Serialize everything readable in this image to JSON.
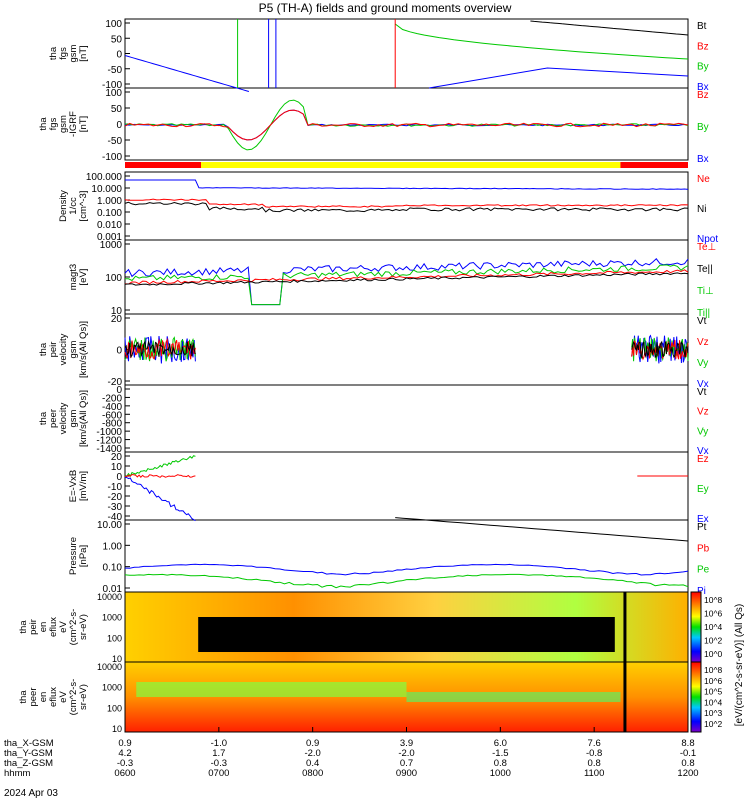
{
  "chart_data": {
    "type": "line",
    "title": "P5 (TH-A) fields and ground moments overview",
    "date_label": "2024 Apr 03",
    "time_axis": {
      "range": [
        "06:00",
        "12:00"
      ],
      "row_labels": [
        "tha_X-GSM",
        "tha_Y-GSM",
        "tha_Z-GSM",
        "hhmm"
      ],
      "columns": [
        [
          "0.9",
          "4.2",
          "-0.3",
          "0600"
        ],
        [
          "-1.0",
          "1.7",
          "-0.3",
          "0700"
        ],
        [
          "0.9",
          "-2.0",
          "0.4",
          "0800"
        ],
        [
          "3.9",
          "-2.0",
          "0.7",
          "0900"
        ],
        [
          "6.0",
          "-1.5",
          "0.8",
          "1000"
        ],
        [
          "7.6",
          "-0.8",
          "0.8",
          "1100"
        ],
        [
          "8.8",
          "-0.1",
          "0.8",
          "1200"
        ]
      ]
    },
    "panels": [
      {
        "ylabel": [
          "tha",
          "fgs",
          "gsm",
          "[nT]"
        ],
        "ylim": [
          -100,
          100
        ],
        "yticks": [
          "100",
          "50",
          "0",
          "-50",
          "-100"
        ],
        "legend": [
          {
            "name": "Bt",
            "color": "#000000"
          },
          {
            "name": "Bz",
            "color": "#ff0000"
          },
          {
            "name": "By",
            "color": "#00c800"
          },
          {
            "name": "Bx",
            "color": "#0000ff"
          }
        ]
      },
      {
        "ylabel": [
          "tha",
          "fgs",
          "gsm",
          "-IGRF",
          "[nT]"
        ],
        "ylim": [
          -120,
          120
        ],
        "yticks": [
          "100",
          "50",
          "0",
          "-50",
          "-100"
        ],
        "legend": [
          {
            "name": "Bz",
            "color": "#ff0000"
          },
          {
            "name": "By",
            "color": "#00c800"
          },
          {
            "name": "Bx",
            "color": "#0000ff"
          }
        ]
      },
      {
        "ylabel": [
          "Density",
          "1/cc",
          "[cm^-3]"
        ],
        "scale": "log",
        "yticks": [
          "100.000",
          "10.000",
          "1.000",
          "0.100",
          "0.010",
          "0.001"
        ],
        "legend": [
          {
            "name": "Ne",
            "color": "#ff0000"
          },
          {
            "name": "Ni",
            "color": "#000000"
          },
          {
            "name": "Npot",
            "color": "#0000ff"
          }
        ]
      },
      {
        "ylabel": [
          "magt3",
          "[eV]"
        ],
        "scale": "log",
        "yticks": [
          "1000",
          "100",
          "10"
        ],
        "legend": [
          {
            "name": "Te⊥",
            "color": "#ff0000"
          },
          {
            "name": "Te||",
            "color": "#000000"
          },
          {
            "name": "Ti⊥",
            "color": "#00c800"
          },
          {
            "name": "Ti||",
            "color": "#00c800"
          }
        ]
      },
      {
        "ylabel": [
          "tha",
          "peir",
          "velocity",
          "gsm",
          "[km/s(All Qs)]"
        ],
        "ylim": [
          -30,
          30
        ],
        "yticks": [
          "20",
          "0",
          "-20"
        ],
        "legend": [
          {
            "name": "Vt",
            "color": "#000000"
          },
          {
            "name": "Vz",
            "color": "#ff0000"
          },
          {
            "name": "Vy",
            "color": "#00c800"
          },
          {
            "name": "Vx",
            "color": "#0000ff"
          }
        ]
      },
      {
        "ylabel": [
          "tha",
          "peer",
          "velocity",
          "gsm",
          "[km/s(All Qs)]"
        ],
        "ylim": [
          -1400,
          0
        ],
        "yticks": [
          "0",
          "-200",
          "-400",
          "-600",
          "-800",
          "-1000",
          "-1200",
          "-1400"
        ],
        "legend": [
          {
            "name": "Vt",
            "color": "#000000"
          },
          {
            "name": "Vz",
            "color": "#ff0000"
          },
          {
            "name": "Vy",
            "color": "#00c800"
          },
          {
            "name": "Vx",
            "color": "#0000ff"
          }
        ]
      },
      {
        "ylabel": [
          "E=-VxB",
          "[mV/m]"
        ],
        "ylim": [
          -40,
          20
        ],
        "yticks": [
          "20",
          "10",
          "0",
          "-10",
          "-20",
          "-30",
          "-40"
        ],
        "legend": [
          {
            "name": "Ez",
            "color": "#ff0000"
          },
          {
            "name": "Ey",
            "color": "#00c800"
          },
          {
            "name": "Ex",
            "color": "#0000ff"
          }
        ]
      },
      {
        "ylabel": [
          "Pressure",
          "[nPa]"
        ],
        "scale": "log",
        "yticks": [
          "10.00",
          "1.00",
          "0.10",
          "0.01"
        ],
        "legend": [
          {
            "name": "Pt",
            "color": "#000000"
          },
          {
            "name": "Pb",
            "color": "#ff0000"
          },
          {
            "name": "Pe",
            "color": "#00c800"
          },
          {
            "name": "Pi",
            "color": "#0000ff"
          }
        ]
      },
      {
        "ylabel": [
          "tha",
          "peir",
          "en",
          "eflux",
          "eV",
          "(cm^2-s-",
          "sr-eV)"
        ],
        "scale": "log",
        "type": "heatmap",
        "yticks": [
          "10000",
          "1000",
          "100",
          "10"
        ]
      },
      {
        "ylabel": [
          "tha",
          "peer",
          "en",
          "eflux",
          "eV",
          "(cm^2-s-",
          "sr-eV)"
        ],
        "scale": "log",
        "type": "heatmap",
        "yticks": [
          "10000",
          "1000",
          "100",
          "10"
        ]
      }
    ],
    "colorbar": {
      "upper_ticks": [
        "10^8",
        "10^6",
        "10^4",
        "10^2",
        "10^0"
      ],
      "lower_ticks": [
        "10^8",
        "10^6",
        "10^5",
        "10^4",
        "10^3",
        "10^2"
      ],
      "label": "[eV/(cm^2-s-sr-eV)] (All Qs)"
    },
    "mode_bar": {
      "segments": [
        {
          "start": 0.0,
          "end": 0.135,
          "color": "#ff0000"
        },
        {
          "start": 0.135,
          "end": 0.88,
          "color": "#ffff00"
        },
        {
          "start": 0.88,
          "end": 1.0,
          "color": "#ff0000"
        }
      ]
    }
  }
}
